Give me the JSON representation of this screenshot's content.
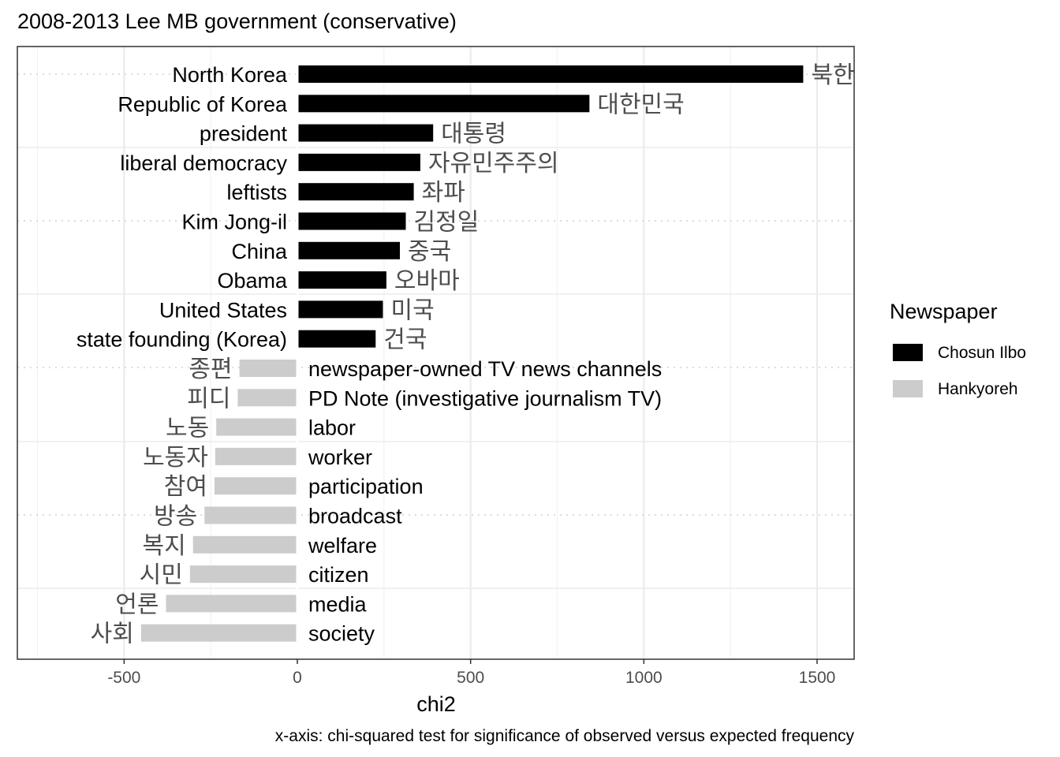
{
  "chart_data": {
    "type": "bar",
    "orientation": "horizontal",
    "title": "2008-2013 Lee MB government (conservative)",
    "xlabel": "chi2",
    "caption": "x-axis: chi-squared test for significance of observed versus expected frequency",
    "xlim": [
      -810,
      1610
    ],
    "x_ticks": [
      -500,
      0,
      500,
      1000,
      1500
    ],
    "x_tick_labels": [
      "-500",
      "0",
      "500",
      "1000",
      "1500"
    ],
    "grid": true,
    "legend": {
      "title": "Newspaper",
      "placement": "right",
      "entries": [
        {
          "name": "Chosun Ilbo",
          "color": "#000000"
        },
        {
          "name": "Hankyoreh",
          "color": "#cccccc"
        }
      ]
    },
    "bars": [
      {
        "en": "North Korea",
        "ko": "북한",
        "value": 1460,
        "paper": "Chosun Ilbo"
      },
      {
        "en": "Republic of Korea",
        "ko": "대한민국",
        "value": 843,
        "paper": "Chosun Ilbo"
      },
      {
        "en": "president",
        "ko": "대통령",
        "value": 392,
        "paper": "Chosun Ilbo"
      },
      {
        "en": "liberal democracy",
        "ko": "자유민주주의",
        "value": 355,
        "paper": "Chosun Ilbo"
      },
      {
        "en": "leftists",
        "ko": "좌파",
        "value": 336,
        "paper": "Chosun Ilbo"
      },
      {
        "en": "Kim Jong-il",
        "ko": "김정일",
        "value": 313,
        "paper": "Chosun Ilbo"
      },
      {
        "en": "China",
        "ko": "중국",
        "value": 296,
        "paper": "Chosun Ilbo"
      },
      {
        "en": "Obama",
        "ko": "오바마",
        "value": 257,
        "paper": "Chosun Ilbo"
      },
      {
        "en": "United States",
        "ko": "미국",
        "value": 247,
        "paper": "Chosun Ilbo"
      },
      {
        "en": "state founding (Korea)",
        "ko": "건국",
        "value": 226,
        "paper": "Chosun Ilbo"
      },
      {
        "en": "newspaper-owned TV news channels",
        "ko": "종편",
        "value": -167,
        "paper": "Hankyoreh"
      },
      {
        "en": "PD Note (investigative journalism TV)",
        "ko": "피디",
        "value": -172,
        "paper": "Hankyoreh"
      },
      {
        "en": "labor",
        "ko": "노동",
        "value": -234,
        "paper": "Hankyoreh"
      },
      {
        "en": "worker",
        "ko": "노동자",
        "value": -237,
        "paper": "Hankyoreh"
      },
      {
        "en": "participation",
        "ko": "참여",
        "value": -239,
        "paper": "Hankyoreh"
      },
      {
        "en": "broadcast",
        "ko": "방송",
        "value": -268,
        "paper": "Hankyoreh"
      },
      {
        "en": "welfare",
        "ko": "복지",
        "value": -301,
        "paper": "Hankyoreh"
      },
      {
        "en": "citizen",
        "ko": "시민",
        "value": -310,
        "paper": "Hankyoreh"
      },
      {
        "en": "media",
        "ko": "언론",
        "value": -379,
        "paper": "Hankyoreh"
      },
      {
        "en": "society",
        "ko": "사회",
        "value": -451,
        "paper": "Hankyoreh"
      }
    ]
  }
}
